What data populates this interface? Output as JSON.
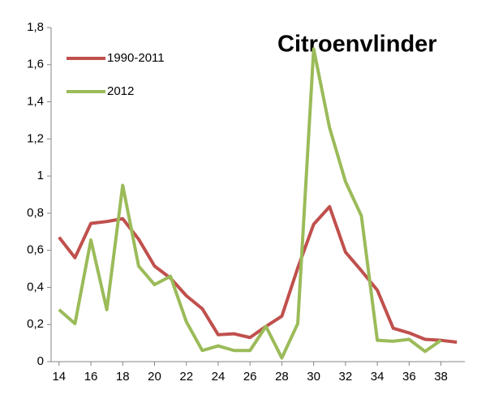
{
  "chart_data": {
    "type": "line",
    "title": "Citroenvlinder",
    "x": [
      14,
      15,
      16,
      17,
      18,
      19,
      20,
      21,
      22,
      23,
      24,
      25,
      26,
      27,
      28,
      29,
      30,
      31,
      32,
      33,
      34,
      35,
      36,
      37,
      38,
      39
    ],
    "series": [
      {
        "name": "1990-2011",
        "color": "#c0504d",
        "values": [
          0.67,
          0.56,
          0.745,
          0.755,
          0.77,
          0.66,
          0.515,
          0.45,
          0.355,
          0.285,
          0.145,
          0.15,
          0.13,
          0.19,
          0.245,
          0.505,
          0.74,
          0.835,
          0.59,
          0.49,
          0.385,
          0.18,
          0.155,
          0.12,
          0.115,
          0.105
        ]
      },
      {
        "name": "2012",
        "color": "#9bbb59",
        "values": [
          0.28,
          0.205,
          0.655,
          0.28,
          0.95,
          0.515,
          0.415,
          0.46,
          0.215,
          0.06,
          0.085,
          0.06,
          0.06,
          0.19,
          0.02,
          0.205,
          1.685,
          1.26,
          0.97,
          0.785,
          0.115,
          0.11,
          0.12,
          0.055,
          0.115,
          null
        ]
      }
    ],
    "xlim": [
      13.5,
      39.5
    ],
    "xticks": [
      14,
      16,
      18,
      20,
      22,
      24,
      26,
      28,
      30,
      32,
      34,
      36,
      38
    ],
    "ylim": [
      0,
      1.8
    ],
    "yticks": [
      0,
      {
        "value": 0.2,
        "label": "0,2"
      },
      {
        "value": 0.4,
        "label": "0,4"
      },
      {
        "value": 0.6,
        "label": "0,6"
      },
      {
        "value": 0.8,
        "label": "0,8"
      },
      1,
      {
        "value": 1.2,
        "label": "1,2"
      },
      {
        "value": 1.4,
        "label": "1,4"
      },
      {
        "value": 1.6,
        "label": "1,6"
      },
      {
        "value": 1.8,
        "label": "1,8"
      }
    ],
    "legend": "top-left",
    "grid": false
  }
}
